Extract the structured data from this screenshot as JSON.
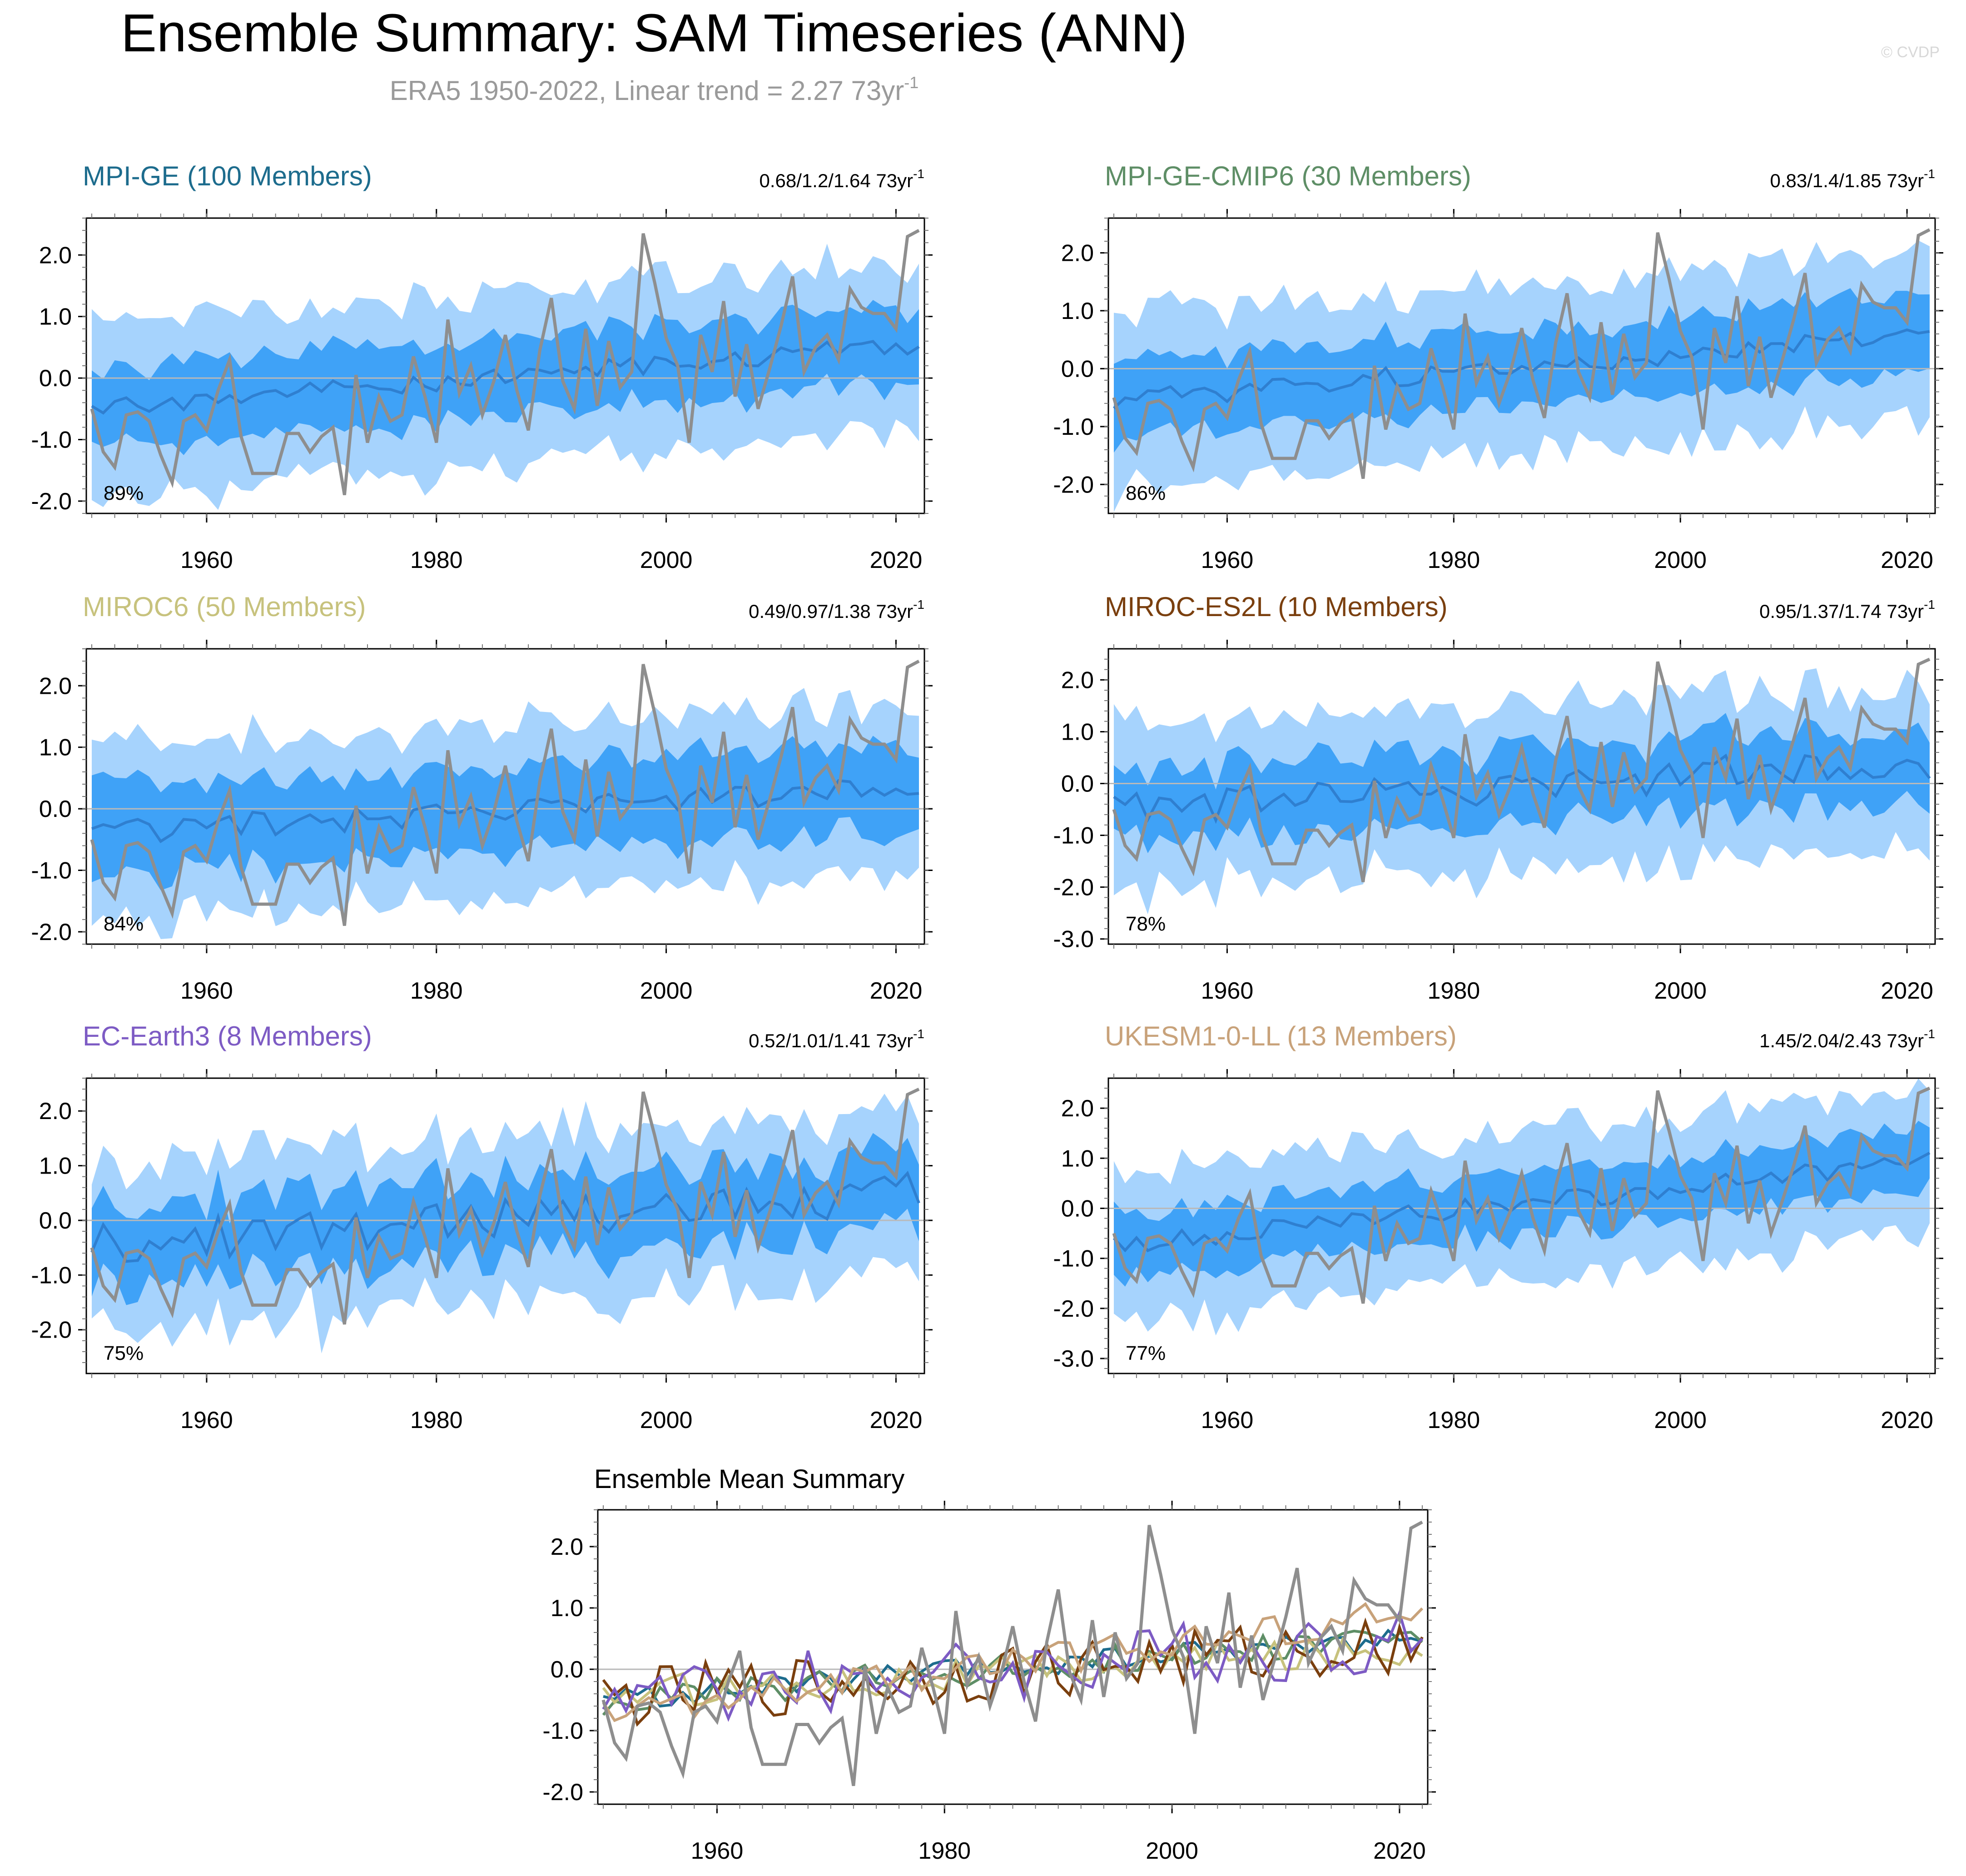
{
  "figure": {
    "title": "Ensemble Summary: SAM Timeseries (ANN)",
    "subtitle": "ERA5 1950-2022, Linear trend = 2.27 73yr",
    "subtitle_sup": "-1",
    "watermark": "© CVDP"
  },
  "colors": {
    "spread_outer": "#a6d3fd",
    "spread_inner": "#3fa2f7",
    "ens_mean": "#2f7fd0",
    "obs": "#8e8e8e",
    "zero_line": "#b9b9b9"
  },
  "chart_data": [
    {
      "type": "area",
      "title": "MPI-GE (100 Members)",
      "title_color": "#1d6c8d",
      "trend_text": "0.68/1.2/1.64 73yr",
      "trend_sup": "-1",
      "percent_label": "89%",
      "x_range": [
        1950,
        2022
      ],
      "ylim": [
        -2.2,
        2.6
      ],
      "yticks": [
        -2.0,
        -1.0,
        0.0,
        1.0,
        2.0
      ],
      "ytick_labels": [
        "-2.0",
        "-1.0",
        "0.0",
        "1.0",
        "2.0"
      ],
      "xticks": [
        1960,
        1980,
        2000,
        2020
      ],
      "xtick_labels": [
        "1960",
        "1980",
        "2000",
        "2020"
      ],
      "ens_mean_trend": [
        -0.5,
        0.55
      ],
      "outer_width": 1.35,
      "inner_width": 0.62,
      "noise": 0.15,
      "seed": 11
    },
    {
      "type": "area",
      "title": "MPI-GE-CMIP6 (30 Members)",
      "title_color": "#5e8e66",
      "trend_text": "0.83/1.4/1.85 73yr",
      "trend_sup": "-1",
      "percent_label": "86%",
      "x_range": [
        1950,
        2022
      ],
      "ylim": [
        -2.5,
        2.6
      ],
      "yticks": [
        -2.0,
        -1.0,
        0.0,
        1.0,
        2.0
      ],
      "ytick_labels": [
        "-2.0",
        "-1.0",
        "0.0",
        "1.0",
        "2.0"
      ],
      "xticks": [
        1960,
        1980,
        2000,
        2020
      ],
      "xtick_labels": [
        "1960",
        "1980",
        "2000",
        "2020"
      ],
      "ens_mean_trend": [
        -0.55,
        0.6
      ],
      "outer_width": 1.4,
      "inner_width": 0.65,
      "noise": 0.18,
      "seed": 23
    },
    {
      "type": "area",
      "title": "MIROC6 (50 Members)",
      "title_color": "#c7c27d",
      "trend_text": "0.49/0.97/1.38 73yr",
      "trend_sup": "-1",
      "percent_label": "84%",
      "x_range": [
        1950,
        2022
      ],
      "ylim": [
        -2.2,
        2.6
      ],
      "yticks": [
        -2.0,
        -1.0,
        0.0,
        1.0,
        2.0
      ],
      "ytick_labels": [
        "-2.0",
        "-1.0",
        "0.0",
        "1.0",
        "2.0"
      ],
      "xticks": [
        1960,
        1980,
        2000,
        2020
      ],
      "xtick_labels": [
        "1960",
        "1980",
        "2000",
        "2020"
      ],
      "ens_mean_trend": [
        -0.4,
        0.35
      ],
      "outer_width": 1.35,
      "inner_width": 0.7,
      "noise": 0.2,
      "seed": 37
    },
    {
      "type": "area",
      "title": "MIROC-ES2L (10 Members)",
      "title_color": "#7a3f0e",
      "trend_text": "0.95/1.37/1.74 73yr",
      "trend_sup": "-1",
      "percent_label": "78%",
      "x_range": [
        1950,
        2022
      ],
      "ylim": [
        -3.1,
        2.6
      ],
      "yticks": [
        -3.0,
        -2.0,
        -1.0,
        0.0,
        1.0,
        2.0
      ],
      "ytick_labels": [
        "-3.0",
        "-2.0",
        "-1.0",
        "0.0",
        "1.0",
        "2.0"
      ],
      "xticks": [
        1960,
        1980,
        2000,
        2020
      ],
      "xtick_labels": [
        "1960",
        "1980",
        "2000",
        "2020"
      ],
      "ens_mean_trend": [
        -0.5,
        0.45
      ],
      "outer_width": 1.5,
      "inner_width": 0.7,
      "noise": 0.35,
      "seed": 41
    },
    {
      "type": "area",
      "title": "EC-Earth3 (8 Members)",
      "title_color": "#7d5bc4",
      "trend_text": "0.52/1.01/1.41 73yr",
      "trend_sup": "-1",
      "percent_label": "75%",
      "x_range": [
        1950,
        2022
      ],
      "ylim": [
        -2.8,
        2.6
      ],
      "yticks": [
        -2.0,
        -1.0,
        0.0,
        1.0,
        2.0
      ],
      "ytick_labels": [
        "-2.0",
        "-1.0",
        "0.0",
        "1.0",
        "2.0"
      ],
      "xticks": [
        1960,
        1980,
        2000,
        2020
      ],
      "xtick_labels": [
        "1960",
        "1980",
        "2000",
        "2020"
      ],
      "ens_mean_trend": [
        -0.45,
        0.5
      ],
      "outer_width": 1.45,
      "inner_width": 0.72,
      "noise": 0.38,
      "seed": 53
    },
    {
      "type": "area",
      "title": "UKESM1-0-LL (13 Members)",
      "title_color": "#c8a27a",
      "trend_text": "1.45/2.04/2.43 73yr",
      "trend_sup": "-1",
      "percent_label": "77%",
      "x_range": [
        1950,
        2022
      ],
      "ylim": [
        -3.3,
        2.6
      ],
      "yticks": [
        -3.0,
        -2.0,
        -1.0,
        0.0,
        1.0,
        2.0
      ],
      "ytick_labels": [
        "-3.0",
        "-2.0",
        "-1.0",
        "0.0",
        "1.0",
        "2.0"
      ],
      "xticks": [
        1960,
        1980,
        2000,
        2020
      ],
      "xtick_labels": [
        "1960",
        "1980",
        "2000",
        "2020"
      ],
      "ens_mean_trend": [
        -0.75,
        0.95
      ],
      "outer_width": 1.4,
      "inner_width": 0.62,
      "noise": 0.2,
      "seed": 67
    },
    {
      "type": "line",
      "title": "Ensemble Mean Summary",
      "x_range": [
        1950,
        2022
      ],
      "ylim": [
        -2.2,
        2.6
      ],
      "yticks": [
        -2.0,
        -1.0,
        0.0,
        1.0,
        2.0
      ],
      "ytick_labels": [
        "-2.0",
        "-1.0",
        "0.0",
        "1.0",
        "2.0"
      ],
      "xticks": [
        1960,
        1980,
        2000,
        2020
      ],
      "xtick_labels": [
        "1960",
        "1980",
        "2000",
        "2020"
      ],
      "series_colors": [
        "#1d6c8d",
        "#5e8e66",
        "#c7c27d",
        "#7a3f0e",
        "#7d5bc4",
        "#c8a27a"
      ]
    }
  ],
  "obs_series": {
    "name": "ERA5",
    "years": [
      1950,
      2022
    ],
    "values": [
      -0.5,
      -1.2,
      -1.45,
      -0.6,
      -0.55,
      -0.7,
      -1.25,
      -1.7,
      -0.7,
      -0.6,
      -0.85,
      -0.2,
      0.3,
      -0.95,
      -1.55,
      -1.55,
      -1.55,
      -0.9,
      -0.9,
      -1.2,
      -0.95,
      -0.8,
      -1.9,
      0.05,
      -1.05,
      -0.3,
      -0.7,
      -0.6,
      0.35,
      -0.3,
      -1.05,
      0.95,
      -0.25,
      0.2,
      -0.6,
      -0.05,
      0.7,
      -0.2,
      -0.85,
      0.45,
      1.3,
      -0.05,
      -0.5,
      0.8,
      -0.45,
      0.6,
      -0.15,
      0.1,
      2.35,
      1.55,
      0.65,
      0.2,
      -1.05,
      0.7,
      0.1,
      1.25,
      -0.3,
      0.55,
      -0.5,
      0.15,
      0.85,
      1.65,
      0.1,
      0.5,
      0.7,
      0.3,
      1.45,
      1.15,
      1.05,
      1.05,
      0.8,
      2.3,
      2.4
    ]
  }
}
